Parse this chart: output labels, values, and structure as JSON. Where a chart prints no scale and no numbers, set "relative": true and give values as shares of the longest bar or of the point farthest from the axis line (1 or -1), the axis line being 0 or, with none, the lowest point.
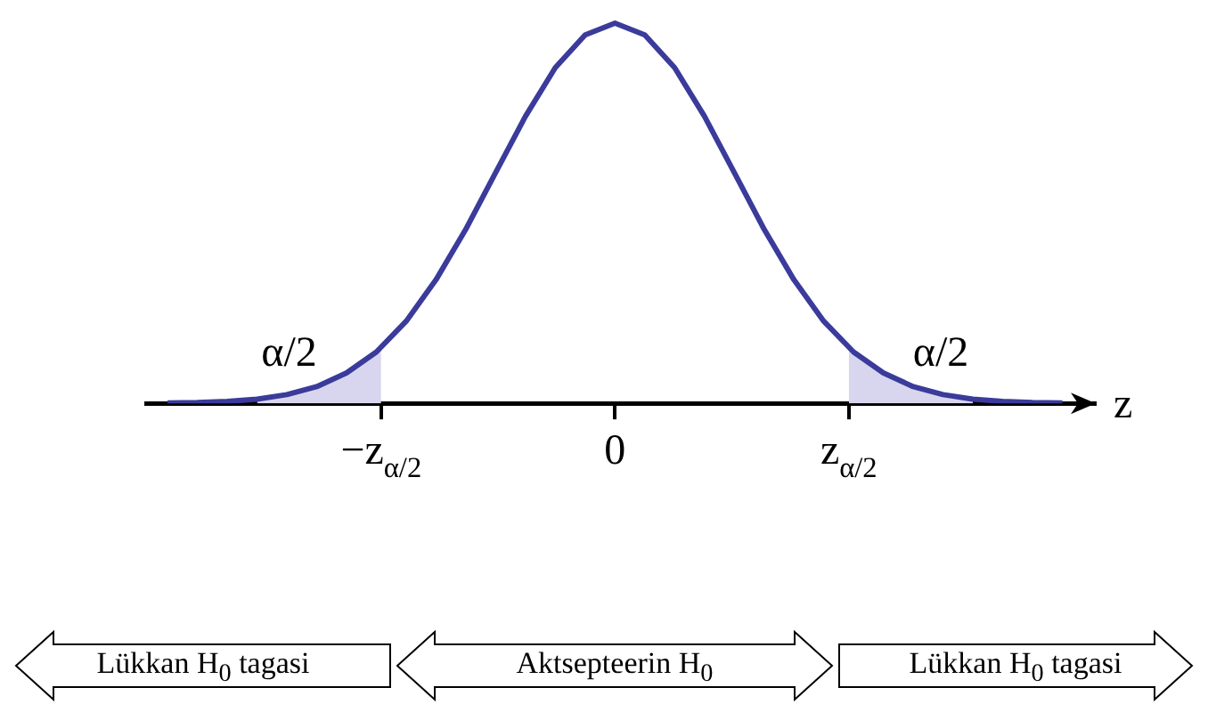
{
  "chart_data": {
    "type": "line",
    "relative": true,
    "xlabel": "z",
    "xlim": [
      -3.93,
      4.03
    ],
    "xticks": [
      {
        "value": -1.96,
        "label": "−z$_{α/2}$"
      },
      {
        "value": 0,
        "label": "0"
      },
      {
        "value": 1.96,
        "label": "z$_{α/2}$"
      }
    ],
    "series": [
      {
        "type": "area",
        "color": "#d8d6ee",
        "x": [
          -3.0,
          -2.75,
          -2.5,
          -2.25,
          -1.96
        ],
        "values": [
          0.011,
          0.023,
          0.044,
          0.08,
          0.146
        ]
      },
      {
        "type": "area",
        "color": "#d8d6ee",
        "x": [
          1.96,
          2.25,
          2.5,
          2.75,
          3.0
        ],
        "values": [
          0.146,
          0.08,
          0.044,
          0.023,
          0.011
        ]
      },
      {
        "color": "#3b3b9b",
        "x": [
          -3.75,
          -3.5,
          -3.25,
          -3.0,
          -2.75,
          -2.5,
          -2.25,
          -2.0,
          -1.75,
          -1.5,
          -1.25,
          -1.0,
          -0.75,
          -0.5,
          -0.25,
          0,
          0.25,
          0.5,
          0.75,
          1.0,
          1.25,
          1.5,
          1.75,
          2.0,
          2.25,
          2.5,
          2.75,
          3.0,
          3.25,
          3.5,
          3.75
        ],
        "values": [
          0.001,
          0.002,
          0.005,
          0.011,
          0.023,
          0.044,
          0.08,
          0.135,
          0.216,
          0.325,
          0.458,
          0.607,
          0.755,
          0.883,
          0.969,
          1,
          0.969,
          0.883,
          0.755,
          0.607,
          0.458,
          0.325,
          0.216,
          0.135,
          0.08,
          0.044,
          0.023,
          0.011,
          0.005,
          0.002,
          0.001
        ]
      }
    ],
    "annotations": [
      "α/2",
      "α/2",
      "Lükkan H$_{0}$ tagasi",
      "Aktsepteerin H$_{0}$",
      "Lükkan H$_{0}$ tagasi"
    ]
  }
}
